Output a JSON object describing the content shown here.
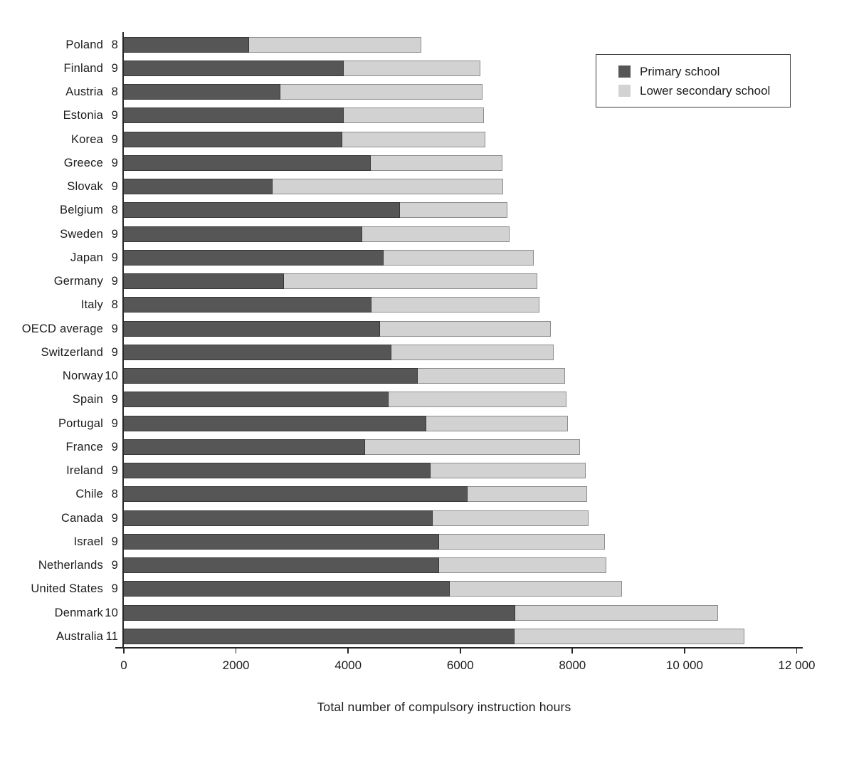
{
  "chart_data": {
    "type": "bar",
    "orientation": "horizontal",
    "stacked": true,
    "title": "",
    "xlabel": "Total number of compulsory instruction hours",
    "xlim": [
      0,
      12000
    ],
    "x_ticks": [
      0,
      2000,
      4000,
      6000,
      8000,
      10000,
      12000
    ],
    "x_tick_labels": [
      "0",
      "2000",
      "4000",
      "6000",
      "8000",
      "10 000",
      "12 000"
    ],
    "grid": false,
    "legend_position": "top-right",
    "categories": [
      "Poland",
      "Finland",
      "Austria",
      "Estonia",
      "Korea",
      "Greece",
      "Slovak",
      "Belgium",
      "Sweden",
      "Japan",
      "Germany",
      "Italy",
      "OECD average",
      "Switzerland",
      "Norway",
      "Spain",
      "Portugal",
      "France",
      "Ireland",
      "Chile",
      "Canada",
      "Israel",
      "Netherlands",
      "United States",
      "Denmark",
      "Australia"
    ],
    "years_of_compulsory_education": [
      "8",
      "9",
      "8",
      "9",
      "9",
      "9",
      "9",
      "8",
      "9",
      "9",
      "9",
      "8",
      "9",
      "9",
      "10",
      "9",
      "9",
      "9",
      "9",
      "8",
      "9",
      "9",
      "9",
      "9",
      "10",
      "11"
    ],
    "series": [
      {
        "name": "Primary school",
        "color": "#565656",
        "values": [
          2250,
          3940,
          2800,
          3940,
          3910,
          4420,
          2670,
          4940,
          4260,
          4650,
          2870,
          4430,
          4580,
          4790,
          5260,
          4730,
          5410,
          4310,
          5480,
          6140,
          5520,
          5630,
          5630,
          5820,
          6990,
          6980
        ]
      },
      {
        "name": "Lower secondary school",
        "color": "#d2d2d2",
        "values": [
          3070,
          2430,
          3610,
          2500,
          2550,
          2340,
          4110,
          1910,
          2630,
          2670,
          4520,
          2990,
          3050,
          2890,
          2620,
          3180,
          2520,
          3840,
          2770,
          2140,
          2780,
          2960,
          2990,
          3080,
          3620,
          4100
        ]
      }
    ],
    "totals": [
      5320,
      6370,
      6410,
      6440,
      6460,
      6760,
      6780,
      6850,
      6890,
      7320,
      7390,
      7420,
      7630,
      7680,
      7880,
      7910,
      7930,
      8150,
      8250,
      8280,
      8300,
      8590,
      8620,
      8900,
      10610,
      11080
    ]
  },
  "colors": {
    "primary_bar": "#565656",
    "primary_bar_border": "#383838",
    "lower_secondary_bar": "#d2d2d2",
    "lower_secondary_bar_border": "#8d8d8d",
    "axis": "#262626",
    "text": "#1c1c1c",
    "background": "#ffffff"
  }
}
